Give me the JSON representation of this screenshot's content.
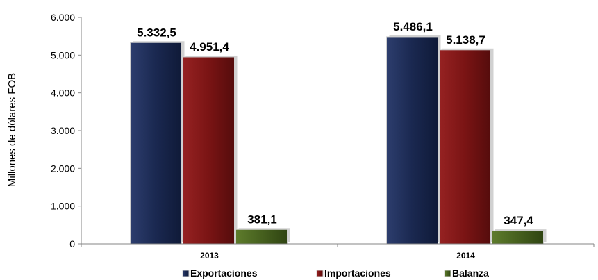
{
  "chart_data": {
    "type": "bar",
    "categories": [
      "2013",
      "2014"
    ],
    "series": [
      {
        "name": "Exportaciones",
        "values": [
          5332.5,
          5486.1
        ],
        "labels": [
          "5.332,5",
          "5.486,1"
        ],
        "color": "#1a2850"
      },
      {
        "name": "Importaciones",
        "values": [
          4951.4,
          5138.7
        ],
        "labels": [
          "4.951,4",
          "5.138,7"
        ],
        "color": "#7a1414"
      },
      {
        "name": "Balanza",
        "values": [
          381.1,
          347.4
        ],
        "labels": [
          "381,1",
          "347,4"
        ],
        "color": "#46601e"
      }
    ],
    "ylabel": "Millones de dólares FOB",
    "ylim": [
      0,
      6000
    ],
    "yticks": [
      0,
      1000,
      2000,
      3000,
      4000,
      5000,
      6000
    ],
    "ytick_labels": [
      "0",
      "1.000",
      "2.000",
      "3.000",
      "4.000",
      "5.000",
      "6.000"
    ],
    "grid": false,
    "legend_position": "bottom"
  }
}
